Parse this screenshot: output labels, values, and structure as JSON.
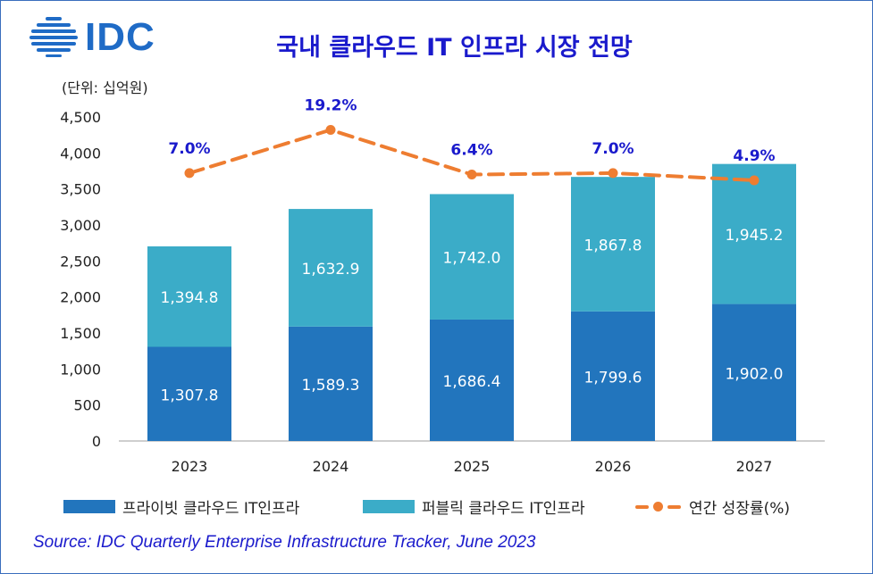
{
  "header": {
    "logo_text": "IDC",
    "title": "국내 클라우드 IT 인프라 시장 전망",
    "unit": "(단위: 십억원)"
  },
  "chart_data": {
    "type": "bar",
    "stacked": true,
    "categories": [
      "2023",
      "2024",
      "2025",
      "2026",
      "2027"
    ],
    "series": [
      {
        "name": "프라이빗 클라우드 IT인프라",
        "color": "#2275bd",
        "values": [
          1307.8,
          1589.3,
          1686.4,
          1799.6,
          1902.0
        ]
      },
      {
        "name": "퍼블릭 클라우드 IT인프라",
        "color": "#3bacc8",
        "values": [
          1394.8,
          1632.9,
          1742.0,
          1867.8,
          1945.2
        ]
      }
    ],
    "value_labels": {
      "private": [
        "1,307.8",
        "1,589.3",
        "1,686.4",
        "1,799.6",
        "1,902.0"
      ],
      "public": [
        "1,394.8",
        "1,632.9",
        "1,742.0",
        "1,867.8",
        "1,945.2"
      ]
    },
    "growth": {
      "name": "연간 성장률(%)",
      "color": "#ee7d31",
      "values": [
        7.0,
        19.2,
        6.4,
        7.0,
        4.9
      ],
      "labels": [
        "7.0%",
        "19.2%",
        "6.4%",
        "7.0%",
        "4.9%"
      ],
      "plot_levels": [
        3720,
        4320,
        3700,
        3720,
        3620
      ]
    },
    "ylim": [
      0,
      4500
    ],
    "yticks": [
      0,
      500,
      1000,
      1500,
      2000,
      2500,
      3000,
      3500,
      4000,
      4500
    ],
    "ytick_labels": [
      "0",
      "500",
      "1,000",
      "1,500",
      "2,000",
      "2,500",
      "3,000",
      "3,500",
      "4,000",
      "4,500"
    ],
    "ylabel": "(단위: 십억원)",
    "xlabel": "",
    "title": "국내 클라우드 IT 인프라 시장 전망",
    "legend_position": "bottom"
  },
  "legend": {
    "private": "프라이빗 클라우드 IT인프라",
    "public": "퍼블릭 클라우드 IT인프라",
    "growth": "연간 성장률(%)"
  },
  "source": "Source: IDC Quarterly Enterprise Infrastructure Tracker, June 2023"
}
